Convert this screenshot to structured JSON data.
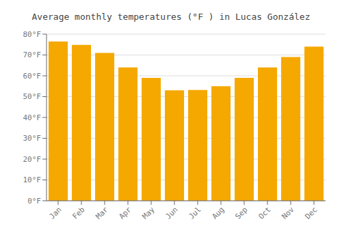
{
  "chart_data": {
    "type": "bar",
    "title": "Average monthly temperatures (°F ) in Lucas González",
    "categories": [
      "Jan",
      "Feb",
      "Mar",
      "Apr",
      "May",
      "Jun",
      "Jul",
      "Aug",
      "Sep",
      "Oct",
      "Nov",
      "Dec"
    ],
    "values": [
      76.5,
      74.8,
      71.0,
      64.0,
      59.0,
      53.0,
      53.2,
      55.0,
      59.0,
      64.0,
      69.0,
      74.0
    ],
    "color": "#F5A800",
    "ylim": [
      0,
      80
    ],
    "yticks": [
      {
        "value": 0,
        "label": "0°F"
      },
      {
        "value": 10,
        "label": "10°F"
      },
      {
        "value": 20,
        "label": "20°F"
      },
      {
        "value": 30,
        "label": "30°F"
      },
      {
        "value": 40,
        "label": "40°F"
      },
      {
        "value": 50,
        "label": "50°F"
      },
      {
        "value": 60,
        "label": "60°F"
      },
      {
        "value": 70,
        "label": "70°F"
      },
      {
        "value": 80,
        "label": "80°F"
      }
    ],
    "grid": true
  }
}
